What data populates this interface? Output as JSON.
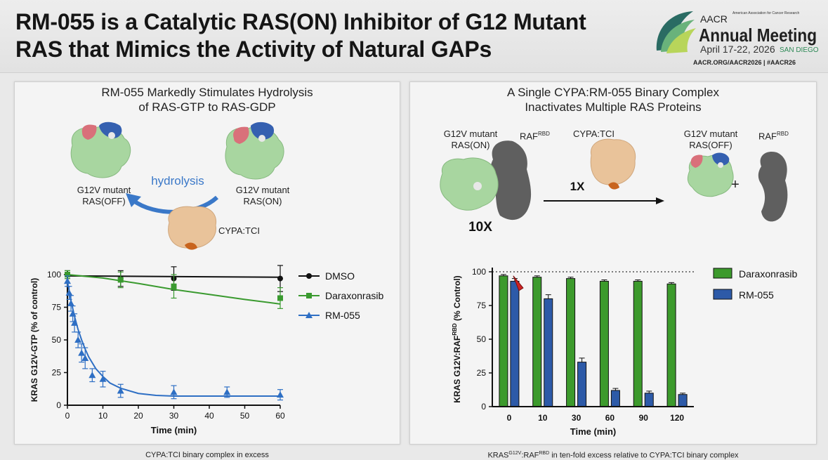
{
  "header": {
    "title_line1": "RM-055 is a Catalytic RAS(ON) Inhibitor of G12 Mutant",
    "title_line2": "RAS that Mimics the Activity of Natural GAPs",
    "logo": {
      "aacr": "AACR",
      "org": "American Association for Cancer Research",
      "meeting": "Annual Meeting",
      "dates": "April 17-22, 2026",
      "city": "SAN DIEGO",
      "links": "AACR.ORG/AACR2026 | #AACR26"
    }
  },
  "left": {
    "title_line1": "RM-055 Markedly Stimulates Hydrolysis",
    "title_line2": "of RAS-GTP to RAS-GDP",
    "hydrolysis": "hydrolysis",
    "off_label_1": "G12V mutant",
    "off_label_2": "RAS(OFF)",
    "on_label_1": "G12V mutant",
    "on_label_2": "RAS(ON)",
    "cypa_label": "CYPA:TCI",
    "footnote": "CYPA:TCI binary complex in excess"
  },
  "right": {
    "title_line1": "A Single CYPA:RM-055 Binary Complex",
    "title_line2": "Inactivates Multiple RAS Proteins",
    "on_label_1": "G12V mutant",
    "on_label_2": "RAS(ON)",
    "raf_label": "RAF",
    "raf_sup": "RBD",
    "cypa_label": "CYPA:TCI",
    "off_label_1": "G12V mutant",
    "off_label_2": "RAS(OFF)",
    "raf2_label": "RAF",
    "raf2_sup": "RBD",
    "plus": "+",
    "x10": "10X",
    "x1": "1X",
    "footnote_pre": "KRAS",
    "footnote_sup1": "G12V",
    "footnote_mid": ":RAF",
    "footnote_sup2": "RBD",
    "footnote_post": " in ten-fold excess relative to CYPA:TCI binary complex"
  },
  "colors": {
    "dmso": "#111111",
    "daraxonrasib": "#3a9a2f",
    "rm055": "#2e6fc4",
    "bar_green": "#3c9a2c",
    "bar_blue": "#2d5aa8",
    "ras_green": "#a8d6a0",
    "switch_pink": "#d9707a",
    "nucleotide_blue": "#3560b0",
    "cypa_tan": "#e9c39a",
    "raf_gray": "#5f5f5f",
    "arrow_blue": "#3a78c8",
    "marker_red": "#cc2222"
  },
  "chart_data": [
    {
      "type": "line",
      "title": "",
      "xlabel": "Time (min)",
      "ylabel": "KRAS G12V-GTP (% of control)",
      "xlim": [
        0,
        60
      ],
      "ylim": [
        0,
        100
      ],
      "xticks": [
        0,
        10,
        20,
        30,
        40,
        50,
        60
      ],
      "yticks": [
        0,
        25,
        50,
        75,
        100
      ],
      "legend_position": "right",
      "series": [
        {
          "name": "DMSO",
          "marker": "circle",
          "x": [
            0,
            15,
            30,
            60
          ],
          "y": [
            100,
            97,
            97,
            97
          ],
          "err": [
            3,
            6,
            9,
            10
          ],
          "fit": [
            [
              0,
              99
            ],
            [
              60,
              98
            ]
          ]
        },
        {
          "name": "Daraxonrasib",
          "marker": "square",
          "x": [
            0,
            15,
            30,
            60
          ],
          "y": [
            100,
            96,
            91,
            82
          ],
          "err": [
            3,
            6,
            9,
            8
          ],
          "fit": [
            [
              0,
              100
            ],
            [
              10,
              97.4
            ],
            [
              20,
              93.2
            ],
            [
              30,
              88.6
            ],
            [
              40,
              84.8
            ],
            [
              50,
              81
            ],
            [
              60,
              77.5
            ]
          ]
        },
        {
          "name": "RM-055",
          "marker": "triangle",
          "x": [
            0,
            0.5,
            1,
            1.5,
            2,
            3,
            4,
            5,
            7,
            10,
            15,
            30,
            45,
            60
          ],
          "y": [
            95,
            86,
            78,
            70,
            63,
            50,
            40,
            36,
            23,
            20,
            11,
            10,
            10,
            8
          ],
          "err": [
            4,
            5,
            6,
            6,
            7,
            6,
            7,
            8,
            5,
            6,
            5,
            5,
            4,
            4
          ],
          "fit": [
            [
              0,
              95
            ],
            [
              1,
              80
            ],
            [
              2,
              68
            ],
            [
              3,
              58
            ],
            [
              4,
              50
            ],
            [
              5,
              43
            ],
            [
              6,
              37
            ],
            [
              8,
              28
            ],
            [
              10,
              22
            ],
            [
              12,
              17
            ],
            [
              15,
              13
            ],
            [
              20,
              9
            ],
            [
              25,
              7.5
            ],
            [
              30,
              7
            ],
            [
              40,
              7
            ],
            [
              50,
              7
            ],
            [
              60,
              7
            ]
          ]
        }
      ]
    },
    {
      "type": "bar",
      "title": "",
      "xlabel": "Time (min)",
      "ylabel": "KRAS G12V:RAF RBD (% Control)",
      "ylabel_main": "KRAS G12V:RAF",
      "ylabel_sup": "RBD",
      "ylabel_end": " (% Control)",
      "categories": [
        "0",
        "10",
        "30",
        "60",
        "90",
        "120"
      ],
      "ylim": [
        0,
        100
      ],
      "yticks": [
        0,
        25,
        50,
        75,
        100
      ],
      "reference_line": 100,
      "legend_position": "top-right",
      "series": [
        {
          "name": "Daraxonrasib",
          "values": [
            97,
            96,
            95,
            93,
            93,
            91
          ],
          "err": [
            1,
            1,
            1,
            1,
            1,
            1
          ]
        },
        {
          "name": "RM-055",
          "values": [
            93,
            80,
            33,
            12,
            10,
            9
          ],
          "err": [
            2,
            3,
            3,
            1.5,
            1.5,
            1
          ]
        }
      ]
    }
  ]
}
